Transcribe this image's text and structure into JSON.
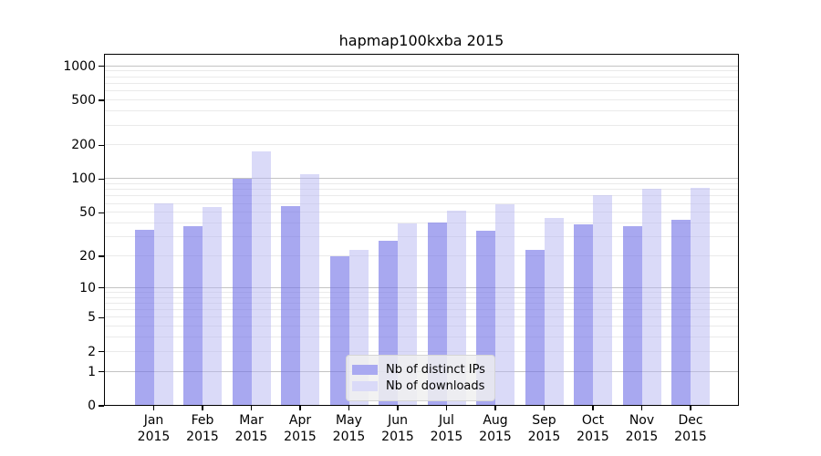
{
  "title": "hapmap100kxba 2015",
  "colors": {
    "bar_ips_fill": "rgba(115,115,231,0.62)",
    "bar_downloads_fill": "rgba(181,181,241,0.5)",
    "legend_swatch_ips": "#a9a9f1",
    "legend_swatch_downloads": "#dadaf8",
    "grid_major": "#c3c3c3",
    "grid_minor": "#eaeaea",
    "spine": "#000000"
  },
  "chart_data": {
    "type": "bar",
    "title": "hapmap100kxba 2015",
    "categories": [
      "Jan",
      "Feb",
      "Mar",
      "Apr",
      "May",
      "Jun",
      "Jul",
      "Aug",
      "Sep",
      "Oct",
      "Nov",
      "Dec"
    ],
    "year_label": "2015",
    "series": [
      {
        "name": "Nb of distinct IPs",
        "values": [
          35,
          38,
          100,
          57,
          20,
          28,
          41,
          34,
          23,
          39,
          38,
          43
        ]
      },
      {
        "name": "Nb of downloads",
        "values": [
          61,
          56,
          175,
          110,
          23,
          40,
          52,
          60,
          45,
          72,
          82,
          83
        ]
      }
    ],
    "xlabel": "",
    "ylabel": "",
    "yscale": "log1p",
    "yticks": [
      0,
      1,
      2,
      5,
      10,
      20,
      50,
      100,
      200,
      500,
      1000
    ],
    "ylim": [
      0,
      1290
    ],
    "grid": true,
    "legend_position": "lower center"
  }
}
